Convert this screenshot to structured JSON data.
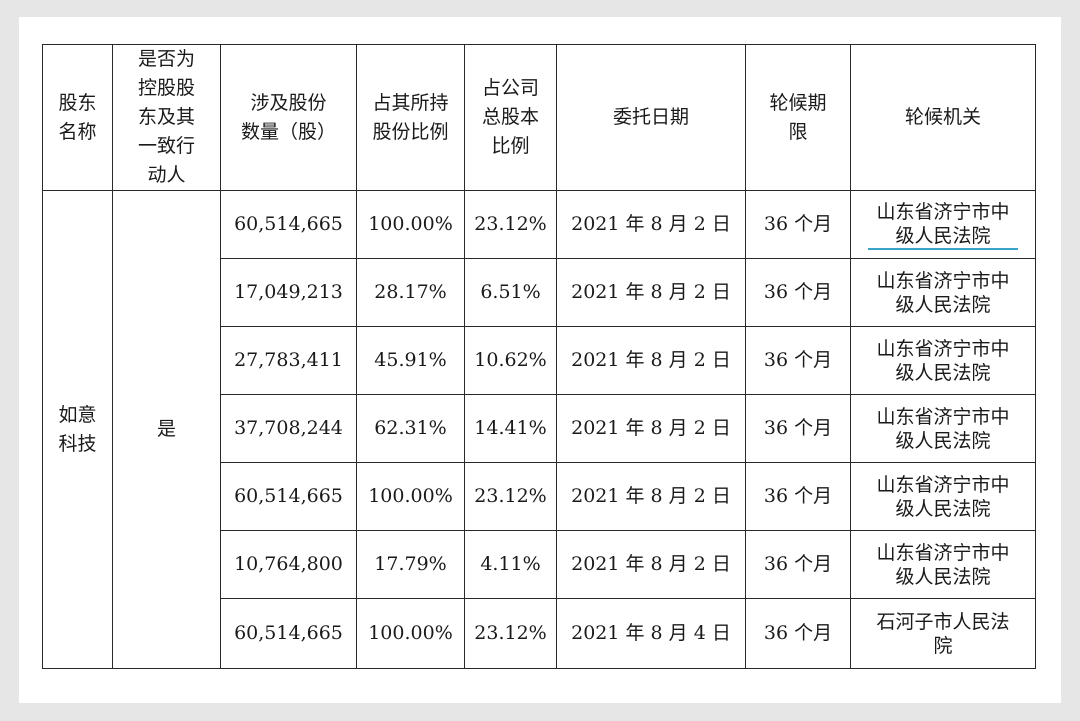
{
  "headers": [
    "股东\n名称",
    "是否为\n控股股\n东及其\n一致行\n动人",
    "涉及股份\n数量（股）",
    "占其所持\n股份比例",
    "占公司\n总股本\n比例",
    "委托日期",
    "轮候期\n限",
    "轮候机关"
  ],
  "shareholder": "如意\n科技",
  "is_controlling": "是",
  "rows": [
    {
      "shares": "60,514,665",
      "pct_held": "100.00%",
      "pct_total": "23.12%",
      "date": "2021 年 8 月 2 日",
      "period": "36 个月",
      "court": "山东省济宁市中级人民法院"
    },
    {
      "shares": "17,049,213",
      "pct_held": "28.17%",
      "pct_total": "6.51%",
      "date": "2021 年 8 月 2 日",
      "period": "36 个月",
      "court": "山东省济宁市中级人民法院"
    },
    {
      "shares": "27,783,411",
      "pct_held": "45.91%",
      "pct_total": "10.62%",
      "date": "2021 年 8 月 2 日",
      "period": "36 个月",
      "court": "山东省济宁市中级人民法院"
    },
    {
      "shares": "37,708,244",
      "pct_held": "62.31%",
      "pct_total": "14.41%",
      "date": "2021 年 8 月 2 日",
      "period": "36 个月",
      "court": "山东省济宁市中级人民法院"
    },
    {
      "shares": "60,514,665",
      "pct_held": "100.00%",
      "pct_total": "23.12%",
      "date": "2021 年 8 月 2 日",
      "period": "36 个月",
      "court": "山东省济宁市中级人民法院"
    },
    {
      "shares": "10,764,800",
      "pct_held": "17.79%",
      "pct_total": "4.11%",
      "date": "2021 年 8 月 2 日",
      "period": "36 个月",
      "court": "山东省济宁市中级人民法院"
    },
    {
      "shares": "60,514,665",
      "pct_held": "100.00%",
      "pct_total": "23.12%",
      "date": "2021 年 8 月 4 日",
      "period": "36 个月",
      "court": "石河子市人民法院"
    }
  ],
  "colors": {
    "link_underline": "#3aa3c8",
    "border": "#2a2a2a",
    "background": "#e6e6e6"
  }
}
